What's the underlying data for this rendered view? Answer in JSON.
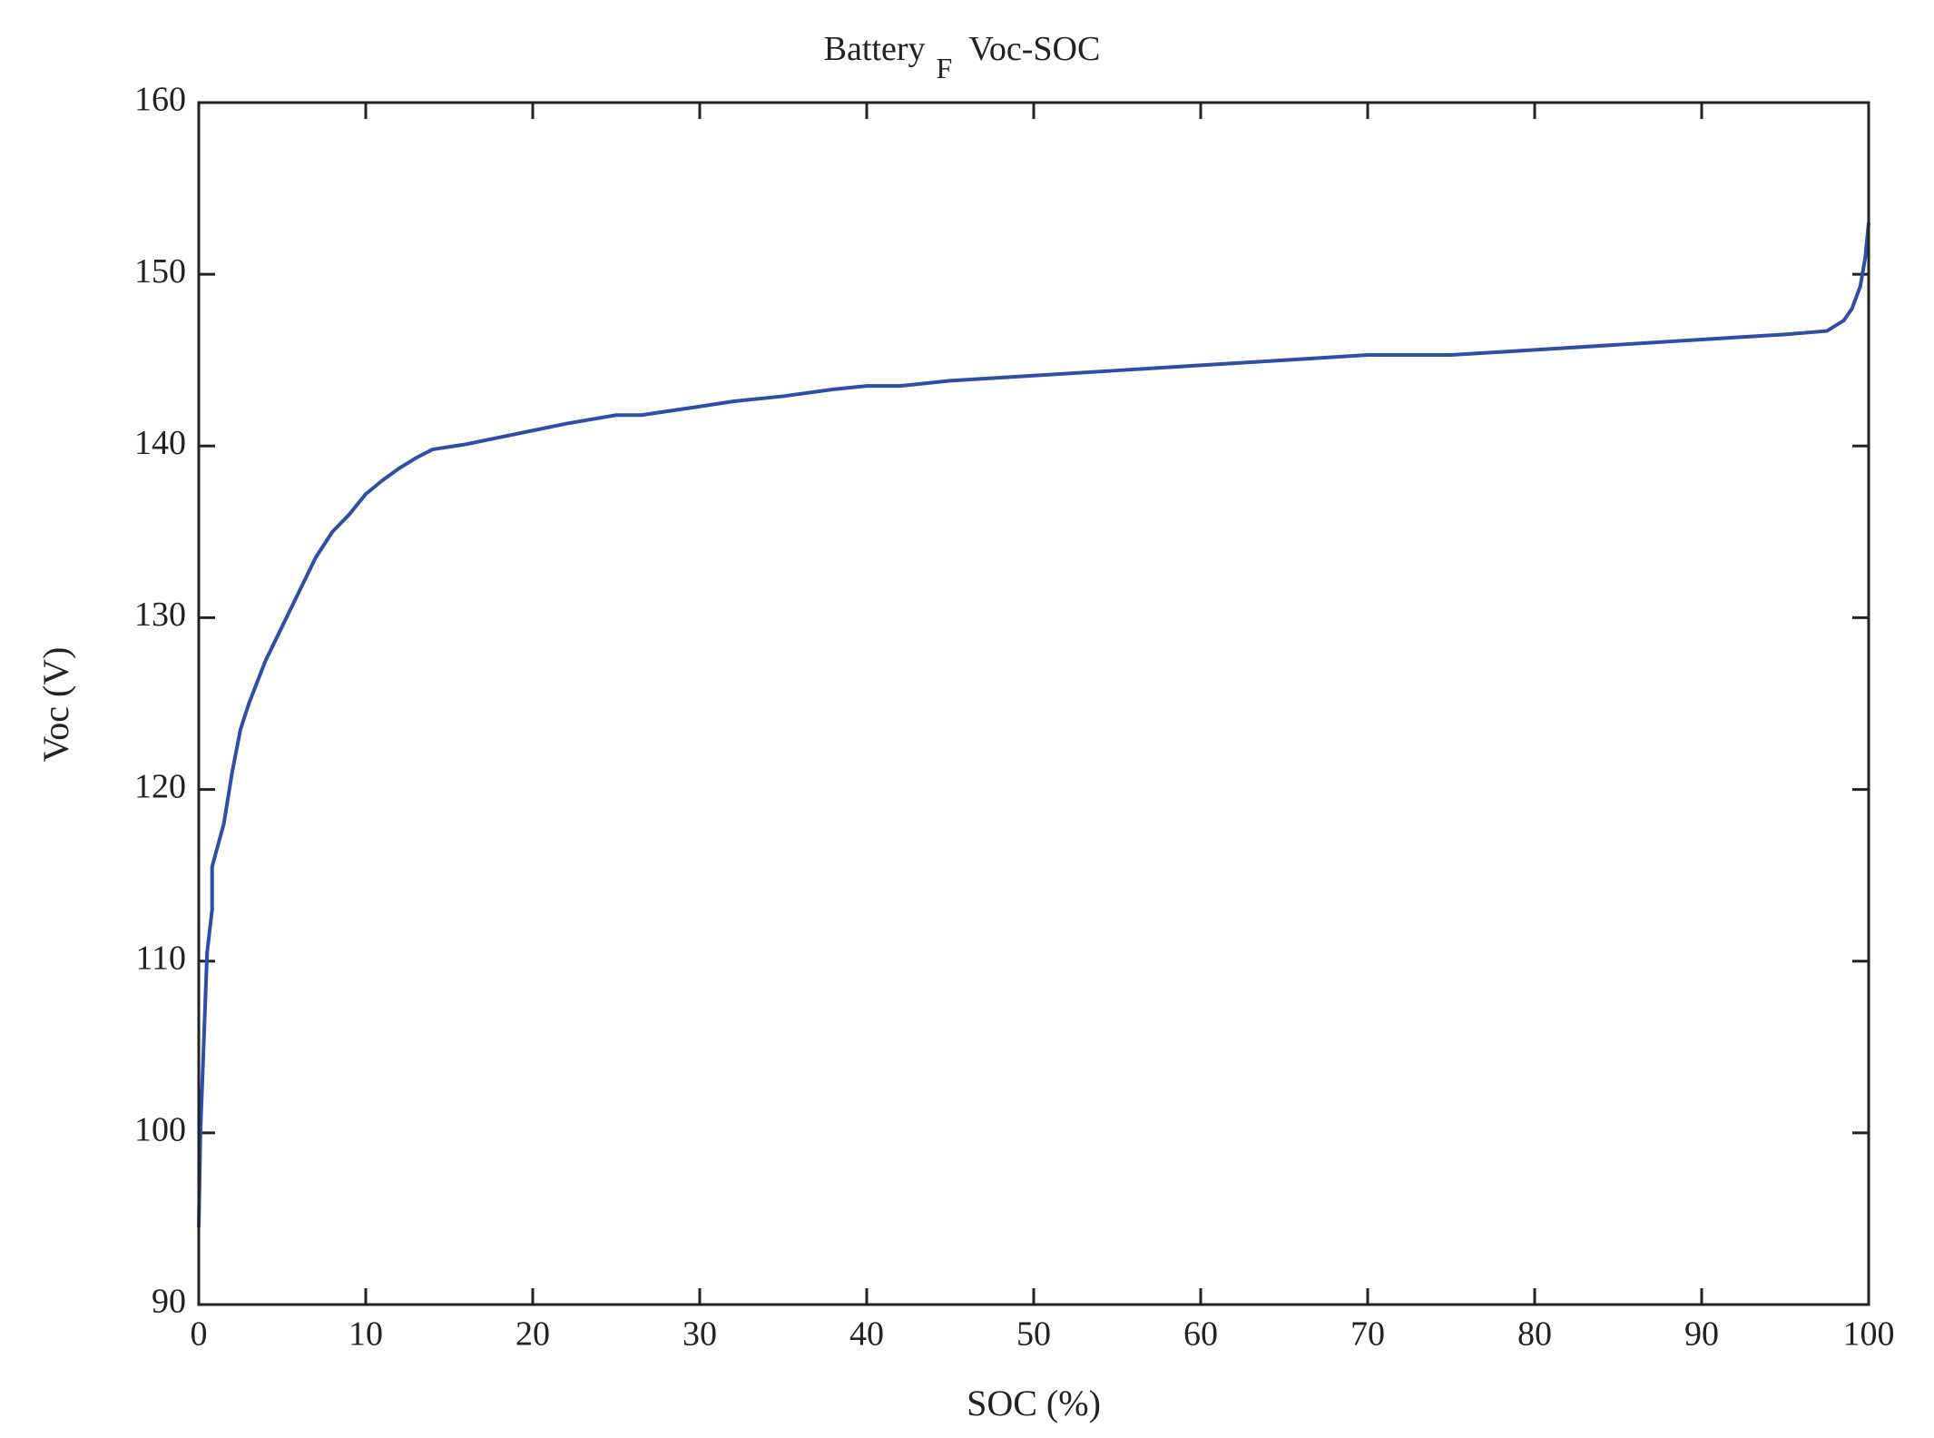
{
  "chart_data": {
    "type": "line",
    "title": "Battery",
    "title_subscript": "F",
    "title_suffix": "Voc-SOC",
    "x_label": "SOC (%)",
    "y_label": "Voc (V)",
    "xlim": [
      0,
      100
    ],
    "ylim": [
      90,
      160
    ],
    "xticks": [
      0,
      10,
      20,
      30,
      40,
      50,
      60,
      70,
      80,
      90,
      100
    ],
    "yticks": [
      90,
      100,
      110,
      120,
      130,
      140,
      150,
      160
    ],
    "grid": false,
    "series": [
      {
        "color": "#2d4fa8",
        "x": [
          0,
          0.1,
          0.5,
          0.8,
          0.8,
          1.5,
          2,
          2.5,
          3,
          4,
          5,
          6,
          7,
          8,
          9,
          10,
          11,
          12,
          13,
          14,
          16,
          18,
          20,
          22,
          25,
          26.5,
          30,
          32,
          35,
          38,
          40,
          42,
          45,
          50,
          55,
          60,
          65,
          70,
          75,
          80,
          85,
          90,
          95,
          97.5,
          98.5,
          99,
          99.5,
          99.8,
          100
        ],
        "values": [
          94.5,
          100,
          110.5,
          113,
          115.5,
          118,
          121,
          123.5,
          125,
          127.5,
          129.5,
          131.5,
          133.5,
          135,
          136,
          137.2,
          138,
          138.7,
          139.3,
          139.8,
          140.1,
          140.5,
          140.9,
          141.3,
          141.8,
          141.8,
          142.3,
          142.6,
          142.9,
          143.3,
          143.5,
          143.5,
          143.8,
          144.1,
          144.4,
          144.7,
          145,
          145.3,
          145.3,
          145.6,
          145.9,
          146.2,
          146.5,
          146.7,
          147.3,
          148,
          149.3,
          151,
          153
        ]
      }
    ]
  }
}
